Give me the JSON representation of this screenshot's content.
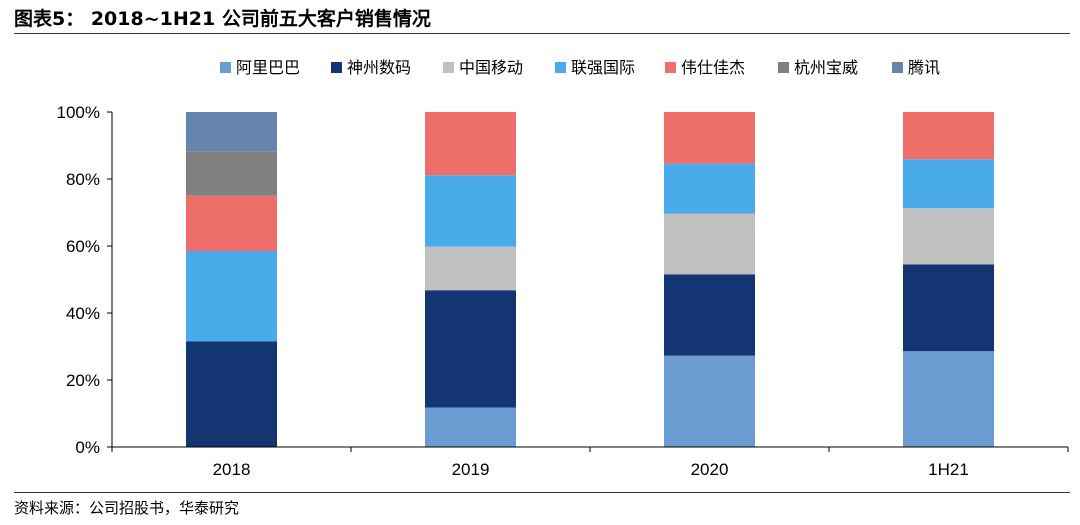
{
  "page": {
    "title": "图表5：  2018~1H21 公司前五大客户销售情况",
    "source": "资料来源：公司招股书，华泰研究"
  },
  "chart_data": {
    "type": "bar",
    "stacked": true,
    "categories": [
      "2018",
      "2019",
      "2020",
      "1H21"
    ],
    "ylim": [
      0,
      100
    ],
    "yticks": [
      "0%",
      "20%",
      "40%",
      "60%",
      "80%",
      "100%"
    ],
    "legend_position": "top",
    "grid": false,
    "series": [
      {
        "name": "阿里巴巴",
        "color": "#6a9bd1",
        "values": [
          0,
          11.8,
          27.3,
          28.6
        ]
      },
      {
        "name": "神州数码",
        "color": "#133673",
        "values": [
          31.5,
          35.0,
          24.2,
          25.9
        ]
      },
      {
        "name": "中国移动",
        "color": "#c0c0c0",
        "values": [
          0,
          13.0,
          18.2,
          16.8
        ]
      },
      {
        "name": "联强国际",
        "color": "#4aabeb",
        "values": [
          27.0,
          21.3,
          14.9,
          14.6
        ]
      },
      {
        "name": "伟仕佳杰",
        "color": "#ee6e6a",
        "values": [
          16.5,
          18.9,
          15.4,
          14.1
        ]
      },
      {
        "name": "杭州宝威",
        "color": "#808080",
        "values": [
          13.3,
          0,
          0,
          0
        ]
      },
      {
        "name": "腾讯",
        "color": "#6684ae",
        "values": [
          11.7,
          0,
          0,
          0
        ]
      }
    ]
  }
}
